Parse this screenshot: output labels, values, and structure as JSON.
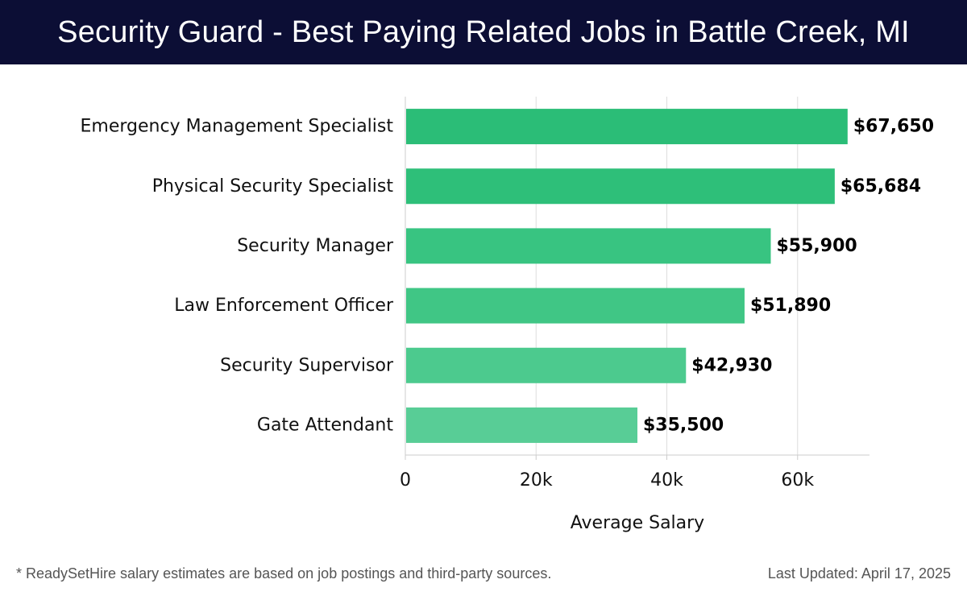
{
  "header": {
    "title": "Security Guard - Best Paying Related Jobs in Battle Creek, MI"
  },
  "chart_data": {
    "type": "bar",
    "orientation": "horizontal",
    "categories": [
      "Emergency Management Specialist",
      "Physical Security Specialist",
      "Security Manager",
      "Law Enforcement Officer",
      "Security Supervisor",
      "Gate Attendant"
    ],
    "values": [
      67650,
      65684,
      55900,
      51890,
      42930,
      35500
    ],
    "value_labels": [
      "$67,650",
      "$65,684",
      "$55,900",
      "$51,890",
      "$42,930",
      "$35,500"
    ],
    "xlabel": "Average Salary",
    "ylabel": "",
    "xlim": [
      0,
      71000
    ],
    "xticks": [
      0,
      20000,
      40000,
      60000
    ],
    "xtick_labels": [
      "0",
      "20k",
      "40k",
      "60k"
    ],
    "grid": true,
    "bar_colors": [
      "#2bbd77",
      "#2ebf79",
      "#38c481",
      "#40c685",
      "#4cca8e",
      "#58cd96"
    ]
  },
  "footer": {
    "note": "* ReadySetHire salary estimates are based on job postings and third-party sources.",
    "updated": "Last Updated: April 17, 2025"
  }
}
